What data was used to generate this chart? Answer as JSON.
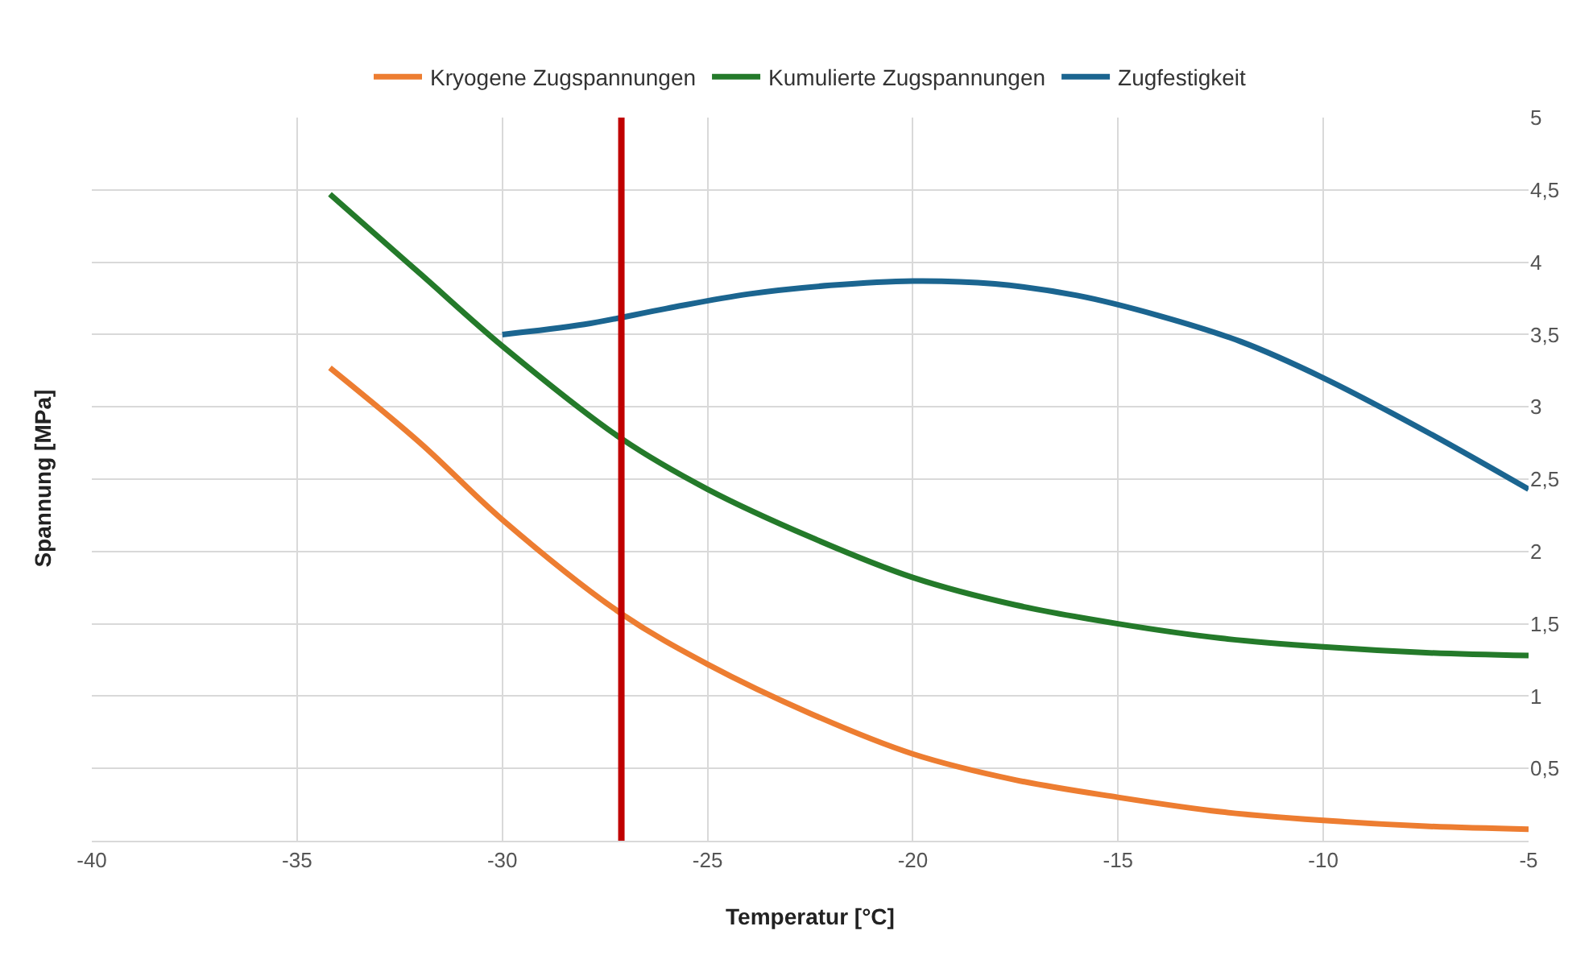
{
  "chart_data": {
    "type": "line",
    "xlabel": "Temperatur [°C]",
    "ylabel": "Spannung [MPa]",
    "xlim": [
      -40,
      -5
    ],
    "xticks": [
      -40,
      -35,
      -30,
      -25,
      -20,
      -15,
      -10,
      -5
    ],
    "ylim": [
      0,
      5
    ],
    "yticks": [
      {
        "value": 0,
        "label": null
      },
      {
        "value": 0.5,
        "label": "0,5"
      },
      1,
      {
        "value": 1.5,
        "label": "1,5"
      },
      2,
      {
        "value": 2.5,
        "label": "2,5"
      },
      3,
      {
        "value": 3.5,
        "label": "3,5"
      },
      4,
      {
        "value": 4.5,
        "label": "4,5"
      },
      5
    ],
    "grid": true,
    "legend": "top",
    "marker": "none",
    "line_style": "solid",
    "series": [
      {
        "name": "Kryogene Zugspannungen",
        "color": "#ed7d31",
        "x": [
          -34.2,
          -32,
          -30,
          -27.1,
          -25,
          -22.5,
          -20,
          -17.5,
          -15,
          -12.5,
          -10,
          -7.5,
          -5
        ],
        "values": [
          3.27,
          2.75,
          2.22,
          1.57,
          1.22,
          0.88,
          0.6,
          0.42,
          0.3,
          0.2,
          0.14,
          0.1,
          0.08
        ]
      },
      {
        "name": "Kumulierte Zugspannungen",
        "color": "#247a2a",
        "x": [
          -34.2,
          -32,
          -30,
          -27.1,
          -25,
          -22.5,
          -20,
          -17.5,
          -15,
          -12.5,
          -10,
          -7.5,
          -5
        ],
        "values": [
          4.47,
          3.92,
          3.42,
          2.78,
          2.43,
          2.1,
          1.82,
          1.63,
          1.5,
          1.4,
          1.34,
          1.3,
          1.28
        ]
      },
      {
        "name": "Zugfestigkeit",
        "color": "#1b6590",
        "x": [
          -30,
          -28,
          -26,
          -24,
          -22,
          -20,
          -18,
          -16,
          -14,
          -12,
          -10,
          -7.5,
          -5
        ],
        "values": [
          3.5,
          3.57,
          3.68,
          3.78,
          3.84,
          3.87,
          3.85,
          3.77,
          3.63,
          3.45,
          3.2,
          2.83,
          2.43
        ]
      }
    ],
    "ref_lines": [
      {
        "axis": "x",
        "value": -27.1,
        "color": "#c00000"
      }
    ]
  }
}
